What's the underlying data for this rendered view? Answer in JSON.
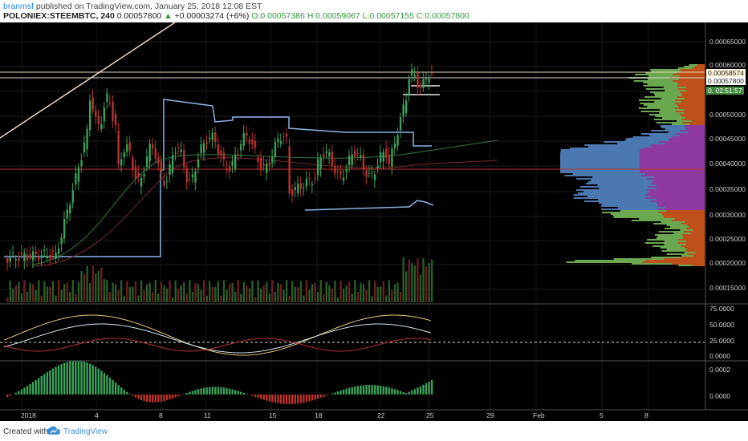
{
  "header": {
    "author": "branmsf",
    "published_text": "published on TradingView.com, January 25, 2018 12:08 EST",
    "symbol": "POLONIEX:STEEMBTC, 240",
    "last": "0.00057800",
    "change_arrow": "▲",
    "change": "+0.00003274 (+6%)",
    "open_label": "O:",
    "open": "0.00057386",
    "high_label": "H:",
    "high": "0.00059067",
    "low_label": "L:",
    "low": "0.00057155",
    "close_label": "C:",
    "close": "0.00057800"
  },
  "price_axis": {
    "labels": [
      "0.00065000",
      "0.00060000",
      "0.00050000",
      "0.00045000",
      "0.00040000",
      "0.00035000",
      "0.00030000",
      "0.00025000",
      "0.00020000",
      "0.00015000"
    ],
    "tag_level": "0.00058574",
    "tag_last": "0.00057800",
    "tag_countdown_prefix": "0.",
    "tag_countdown": "02:51:57"
  },
  "stoch_axis": {
    "labels": [
      "75.0000",
      "50.0000",
      "25.0000",
      "0.0000"
    ]
  },
  "macd_axis": {
    "labels": [
      "0.0002",
      "0.0000"
    ]
  },
  "time_axis": {
    "labels": [
      "2018",
      "4",
      "8",
      "11",
      "15",
      "18",
      "22",
      "25",
      "29",
      "Feb",
      "5",
      "8"
    ]
  },
  "footer": {
    "created_with": "Created with",
    "brand": "TradingView"
  },
  "colors": {
    "background": "#000000",
    "bull": "#3aa05a",
    "bear": "#b8322e",
    "baseline": "#8ab4e6",
    "trendline": "#f0d8c0",
    "profile_up": "#6aa84f",
    "profile_down": "#c0501a",
    "profile_va_up": "#4a78b0",
    "profile_va_down": "#8e3aa0",
    "level_tag": "#fdf5d8",
    "last_tag": "#3f8a3a"
  }
}
